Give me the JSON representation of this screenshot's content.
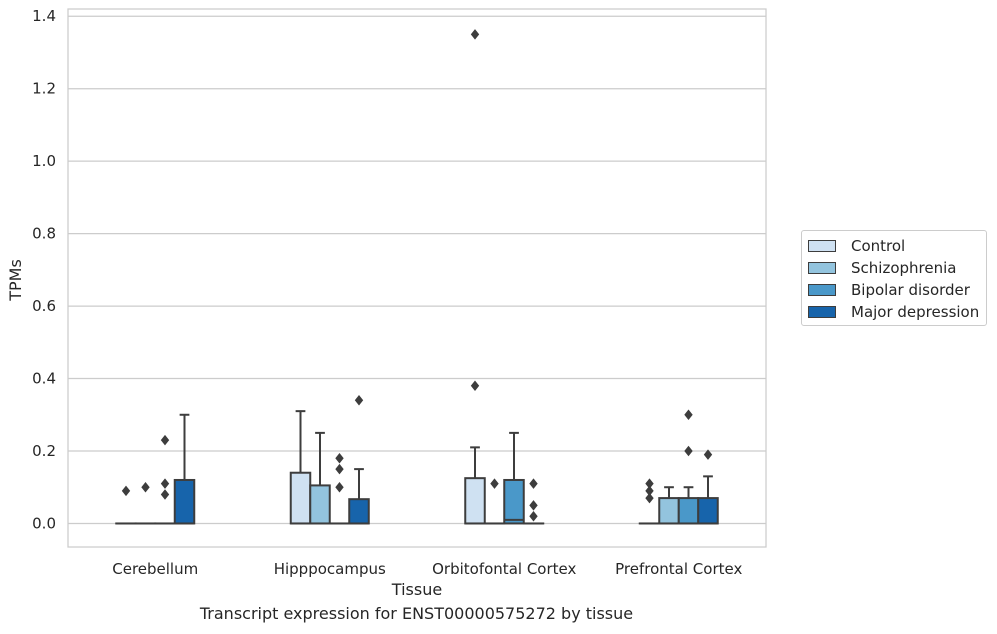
{
  "caption": "Transcript expression for ENST00000575272 by tissue",
  "colors": {
    "Control": "#cfe1f2",
    "Schizophrenia": "#93c4de",
    "Bipolar disorder": "#4a98c9",
    "Major depression": "#1764ab",
    "grid": "#cccccc",
    "box_edge": "#3d3d3d"
  },
  "legend": {
    "placement": "outside-right",
    "items": [
      "Control",
      "Schizophrenia",
      "Bipolar disorder",
      "Major depression"
    ]
  },
  "chart_data": {
    "type": "box",
    "xlabel": "Tissue",
    "ylabel": "TPMs",
    "ylim": [
      -0.065,
      1.42
    ],
    "yticks": [
      0.0,
      0.2,
      0.4,
      0.6,
      0.8,
      1.0,
      1.2,
      1.4
    ],
    "ytick_labels": [
      "0.0",
      "0.2",
      "0.4",
      "0.6",
      "0.8",
      "1.0",
      "1.2",
      "1.4"
    ],
    "grid": "horizontal",
    "categories": [
      "Cerebellum",
      "Hipppocampus",
      "Orbitofontal Cortex",
      "Prefrontal Cortex"
    ],
    "series": [
      {
        "name": "Control",
        "boxes": [
          {
            "q1": 0,
            "median": 0,
            "q3": 0,
            "whisker_low": 0,
            "whisker_high": 0,
            "outliers": [
              0.09
            ]
          },
          {
            "q1": 0,
            "median": 0,
            "q3": 0.14,
            "whisker_low": 0,
            "whisker_high": 0.31,
            "outliers": []
          },
          {
            "q1": 0,
            "median": 0,
            "q3": 0.125,
            "whisker_low": 0,
            "whisker_high": 0.21,
            "outliers": [
              0.38,
              1.35
            ]
          },
          {
            "q1": 0,
            "median": 0,
            "q3": 0,
            "whisker_low": 0,
            "whisker_high": 0,
            "outliers": [
              0.07,
              0.09,
              0.11
            ]
          }
        ]
      },
      {
        "name": "Schizophrenia",
        "boxes": [
          {
            "q1": 0,
            "median": 0,
            "q3": 0,
            "whisker_low": 0,
            "whisker_high": 0,
            "outliers": [
              0.1
            ]
          },
          {
            "q1": 0,
            "median": 0,
            "q3": 0.105,
            "whisker_low": 0,
            "whisker_high": 0.25,
            "outliers": []
          },
          {
            "q1": 0,
            "median": 0,
            "q3": 0,
            "whisker_low": 0,
            "whisker_high": 0,
            "outliers": [
              0.11
            ]
          },
          {
            "q1": 0,
            "median": 0,
            "q3": 0.07,
            "whisker_low": 0,
            "whisker_high": 0.1,
            "outliers": []
          }
        ]
      },
      {
        "name": "Bipolar disorder",
        "boxes": [
          {
            "q1": 0,
            "median": 0,
            "q3": 0,
            "whisker_low": 0,
            "whisker_high": 0,
            "outliers": [
              0.08,
              0.11,
              0.23
            ]
          },
          {
            "q1": 0,
            "median": 0,
            "q3": 0,
            "whisker_low": 0,
            "whisker_high": 0,
            "outliers": [
              0.1,
              0.15,
              0.18
            ]
          },
          {
            "q1": 0,
            "median": 0.01,
            "q3": 0.12,
            "whisker_low": 0,
            "whisker_high": 0.25,
            "outliers": []
          },
          {
            "q1": 0,
            "median": 0,
            "q3": 0.07,
            "whisker_low": 0,
            "whisker_high": 0.1,
            "outliers": [
              0.2,
              0.3
            ]
          }
        ]
      },
      {
        "name": "Major depression",
        "boxes": [
          {
            "q1": 0,
            "median": 0,
            "q3": 0.12,
            "whisker_low": 0,
            "whisker_high": 0.3,
            "outliers": []
          },
          {
            "q1": 0,
            "median": 0,
            "q3": 0.067,
            "whisker_low": 0,
            "whisker_high": 0.15,
            "outliers": [
              0.34
            ]
          },
          {
            "q1": 0,
            "median": 0,
            "q3": 0,
            "whisker_low": 0,
            "whisker_high": 0,
            "outliers": [
              0.02,
              0.05,
              0.11
            ]
          },
          {
            "q1": 0,
            "median": 0,
            "q3": 0.07,
            "whisker_low": 0,
            "whisker_high": 0.13,
            "outliers": [
              0.19
            ]
          }
        ]
      }
    ]
  }
}
